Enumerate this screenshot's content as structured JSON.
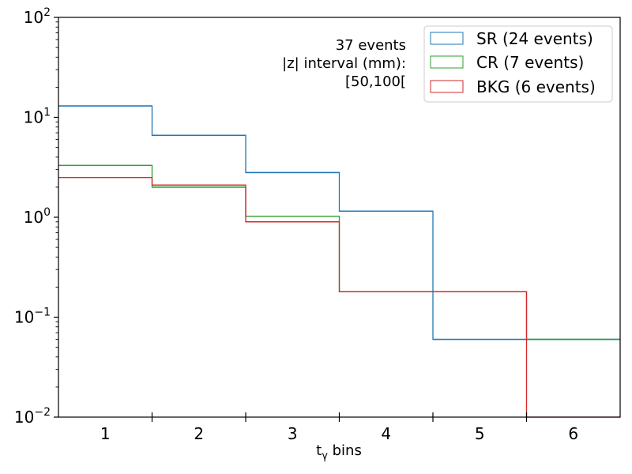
{
  "chart_data": {
    "type": "histogram-step",
    "xlabel": "t",
    "xlabel_sub": "γ",
    "xlabel_suffix": " bins",
    "ylabel": "",
    "yscale": "log",
    "ylim": [
      0.01,
      100
    ],
    "xlim": [
      0.5,
      6.5
    ],
    "categories": [
      "1",
      "2",
      "3",
      "4",
      "5",
      "6"
    ],
    "y_ticks": [
      {
        "value": 0.01,
        "base": "10",
        "exp": "−2"
      },
      {
        "value": 0.1,
        "base": "10",
        "exp": "−1"
      },
      {
        "value": 1,
        "base": "10",
        "exp": "0"
      },
      {
        "value": 10,
        "base": "10",
        "exp": "1"
      },
      {
        "value": 100,
        "base": "10",
        "exp": "2"
      }
    ],
    "series": [
      {
        "name": "SR (24 events)",
        "color": "#1f77b4",
        "values": [
          13.0,
          6.6,
          2.8,
          1.15,
          0.06,
          0.06
        ]
      },
      {
        "name": "CR (7 events)",
        "color": "#2ca02c",
        "values": [
          3.3,
          2.0,
          1.02,
          0.18,
          0.18,
          0.06
        ]
      },
      {
        "name": "BKG (6 events)",
        "color": "#d62728",
        "values": [
          2.5,
          2.1,
          0.9,
          0.18,
          0.18,
          0
        ]
      }
    ],
    "annotation": [
      "37 events",
      "|z| interval (mm):",
      "[50,100["
    ],
    "legend_position": "top-right"
  }
}
